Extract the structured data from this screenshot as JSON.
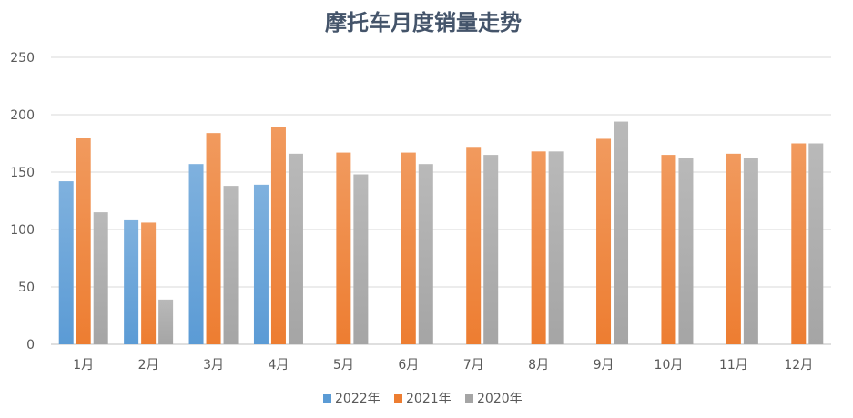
{
  "chart_data": {
    "type": "bar",
    "title": "摩托车月度销量走势",
    "categories": [
      "1月",
      "2月",
      "3月",
      "4月",
      "5月",
      "6月",
      "7月",
      "8月",
      "9月",
      "10月",
      "11月",
      "12月"
    ],
    "series": [
      {
        "name": "2022年",
        "color": "#5b9bd5",
        "values": [
          142,
          108,
          157,
          139,
          null,
          null,
          null,
          null,
          null,
          null,
          null,
          null
        ]
      },
      {
        "name": "2021年",
        "color": "#ed7d31",
        "values": [
          180,
          106,
          184,
          189,
          167,
          167,
          172,
          168,
          179,
          165,
          166,
          175
        ]
      },
      {
        "name": "2020年",
        "color": "#a5a5a5",
        "values": [
          115,
          39,
          138,
          166,
          148,
          157,
          165,
          168,
          194,
          162,
          162,
          175
        ]
      }
    ],
    "ylim": [
      0,
      250
    ],
    "yticks": [
      0,
      50,
      100,
      150,
      200,
      250
    ],
    "grid": true,
    "legend": "bottom"
  }
}
